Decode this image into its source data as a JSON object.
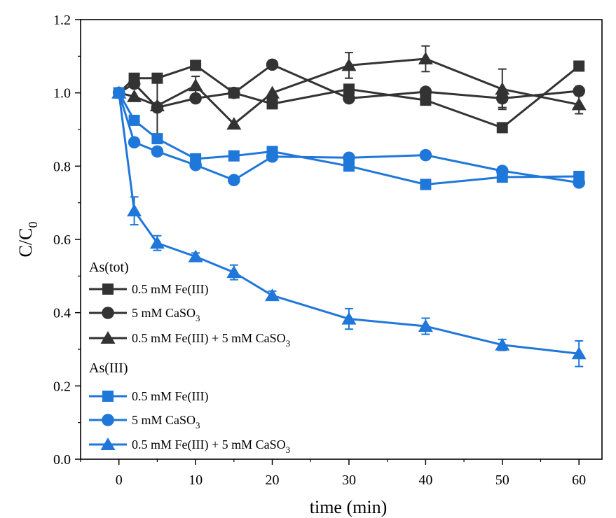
{
  "chart_data": {
    "type": "line",
    "xlabel": "time (min)",
    "ylabel": {
      "main": "C/C",
      "sub": "0"
    },
    "xlim": [
      -5,
      63
    ],
    "ylim": [
      0,
      1.2
    ],
    "xticks": [
      0,
      10,
      20,
      30,
      40,
      50,
      60
    ],
    "xtick_labels": [
      "0",
      "10",
      "20",
      "30",
      "40",
      "50",
      "60"
    ],
    "yticks": [
      0,
      0.2,
      0.4,
      0.6,
      0.8,
      1.0,
      1.2
    ],
    "ytick_labels": [
      "0.0",
      "0.2",
      "0.4",
      "0.6",
      "0.8",
      "1.0",
      "1.2"
    ],
    "grid": false,
    "legend_position": "bottom-left",
    "legend_groups": [
      "As(tot)",
      "As(III)"
    ],
    "x": [
      0,
      2,
      5,
      10,
      15,
      20,
      30,
      40,
      50,
      60
    ],
    "series": [
      {
        "group": "As(tot)",
        "name": {
          "main": "0.5 mM Fe(III)",
          "sub": ""
        },
        "color": "#333333",
        "marker": "square",
        "values": [
          1.0,
          1.04,
          1.04,
          1.075,
          1.0,
          0.97,
          1.01,
          0.98,
          0.905,
          1.073
        ],
        "errors": [
          0,
          0,
          0,
          0,
          0,
          0,
          0,
          0,
          0,
          0
        ]
      },
      {
        "group": "As(tot)",
        "name": {
          "main": "5 mM CaSO",
          "sub": "3"
        },
        "color": "#333333",
        "marker": "circle",
        "values": [
          1.0,
          1.025,
          0.96,
          0.985,
          1.0,
          1.077,
          0.985,
          1.003,
          0.985,
          1.005
        ],
        "errors": [
          0,
          0,
          0,
          0,
          0,
          0,
          0,
          0,
          0.025,
          0
        ]
      },
      {
        "group": "As(tot)",
        "name": {
          "main": "0.5 mM Fe(III) + 5 mM CaSO",
          "sub": "3"
        },
        "color": "#333333",
        "marker": "triangle",
        "values": [
          1.0,
          0.99,
          0.965,
          1.02,
          0.915,
          1.0,
          1.075,
          1.093,
          1.01,
          0.968
        ],
        "errors": [
          0,
          0,
          0.08,
          0.025,
          0,
          0,
          0.035,
          0.035,
          0.055,
          0.025
        ]
      },
      {
        "group": "As(III)",
        "name": {
          "main": "0.5 mM Fe(III)",
          "sub": ""
        },
        "color": "#1f77d9",
        "marker": "square",
        "values": [
          1.0,
          0.925,
          0.875,
          0.82,
          0.828,
          0.84,
          0.8,
          0.75,
          0.77,
          0.772
        ],
        "errors": [
          0,
          0,
          0,
          0,
          0,
          0,
          0,
          0,
          0,
          0
        ]
      },
      {
        "group": "As(III)",
        "name": {
          "main": "5 mM CaSO",
          "sub": "3"
        },
        "color": "#1f77d9",
        "marker": "circle",
        "values": [
          1.0,
          0.865,
          0.84,
          0.803,
          0.762,
          0.826,
          0.823,
          0.83,
          0.787,
          0.755
        ],
        "errors": [
          0,
          0,
          0,
          0,
          0,
          0,
          0,
          0,
          0,
          0
        ]
      },
      {
        "group": "As(III)",
        "name": {
          "main": "0.5 mM Fe(III) + 5 mM CaSO",
          "sub": "3"
        },
        "color": "#1f77d9",
        "marker": "triangle",
        "values": [
          1.0,
          0.678,
          0.59,
          0.553,
          0.51,
          0.447,
          0.383,
          0.363,
          0.312,
          0.288
        ],
        "errors": [
          0,
          0.038,
          0.02,
          0.01,
          0.02,
          0.012,
          0.028,
          0.022,
          0.015,
          0.035
        ]
      }
    ]
  }
}
